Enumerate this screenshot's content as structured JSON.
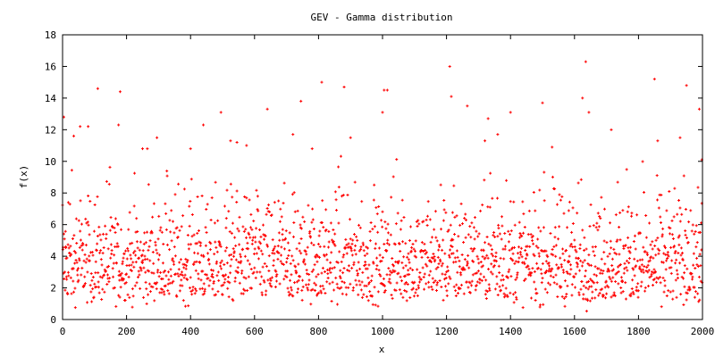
{
  "chart_data": {
    "type": "scatter",
    "title": "GEV - Gamma distribution",
    "xlabel": "x",
    "ylabel": "f(x)",
    "xlim": [
      0,
      2000
    ],
    "ylim": [
      0,
      18
    ],
    "x_ticks": [
      0,
      200,
      400,
      600,
      800,
      1000,
      1200,
      1400,
      1600,
      1800,
      2000
    ],
    "y_ticks": [
      0,
      2,
      4,
      6,
      8,
      10,
      12,
      14,
      16,
      18
    ],
    "grid": false,
    "legend": "none",
    "marker": "plus",
    "point_color": "#ff0000",
    "series": [
      {
        "points": [
          [
            4,
            12.8
          ],
          [
            10,
            4.6
          ],
          [
            18,
            7.4
          ],
          [
            35,
            11.6
          ],
          [
            55,
            12.2
          ],
          [
            80,
            12.2
          ],
          [
            110,
            14.6
          ],
          [
            175,
            12.3
          ],
          [
            180,
            14.4
          ],
          [
            250,
            10.8
          ],
          [
            265,
            10.8
          ],
          [
            295,
            11.5
          ],
          [
            400,
            10.8
          ],
          [
            440,
            12.3
          ],
          [
            495,
            13.1
          ],
          [
            525,
            11.3
          ],
          [
            545,
            11.2
          ],
          [
            575,
            11.0
          ],
          [
            640,
            13.3
          ],
          [
            720,
            11.7
          ],
          [
            745,
            13.8
          ],
          [
            780,
            10.8
          ],
          [
            810,
            15.0
          ],
          [
            880,
            14.7
          ],
          [
            900,
            11.5
          ],
          [
            1000,
            13.1
          ],
          [
            1005,
            14.5
          ],
          [
            1015,
            14.5
          ],
          [
            1210,
            16.0
          ],
          [
            1215,
            14.1
          ],
          [
            1265,
            13.5
          ],
          [
            1320,
            11.3
          ],
          [
            1330,
            12.7
          ],
          [
            1360,
            11.7
          ],
          [
            1400,
            13.1
          ],
          [
            1500,
            13.7
          ],
          [
            1530,
            10.9
          ],
          [
            1625,
            14.0
          ],
          [
            1635,
            16.3
          ],
          [
            1645,
            13.1
          ],
          [
            1715,
            12.0
          ],
          [
            1850,
            15.2
          ],
          [
            1860,
            11.3
          ],
          [
            1930,
            11.5
          ],
          [
            1950,
            14.8
          ],
          [
            1990,
            13.3
          ],
          [
            1998,
            10.1
          ]
        ]
      }
    ]
  }
}
